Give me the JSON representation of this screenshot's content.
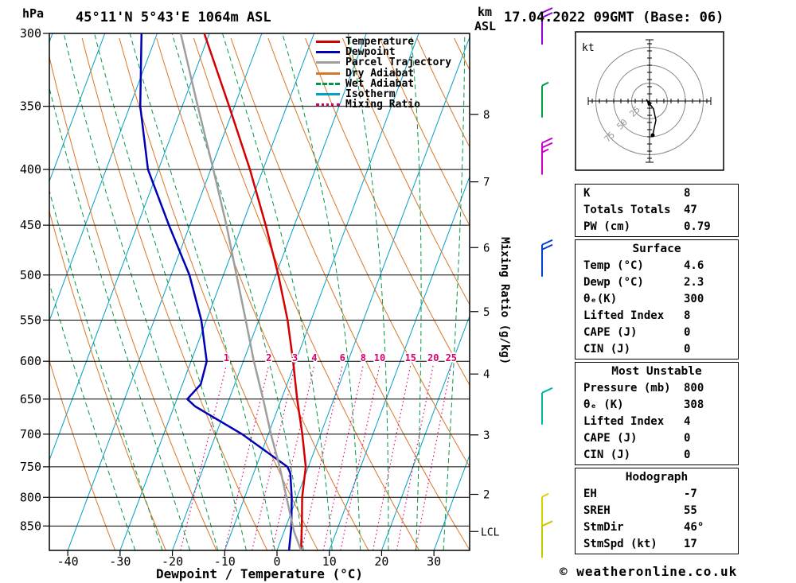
{
  "header": {
    "title": "45°11'N 5°43'E 1064m ASL",
    "datetime": "17.04.2022 09GMT (Base: 06)"
  },
  "footer": {
    "copyright": "© weatheronline.co.uk"
  },
  "legend": [
    {
      "label": "Temperature",
      "color": "#d40000",
      "style": "solid"
    },
    {
      "label": "Dewpoint",
      "color": "#0000b4",
      "style": "solid"
    },
    {
      "label": "Parcel Trajectory",
      "color": "#9e9e9e",
      "style": "solid"
    },
    {
      "label": "Dry Adiabat",
      "color": "#d97728",
      "style": "solid"
    },
    {
      "label": "Wet Adiabat",
      "color": "#009a44",
      "style": "dashed"
    },
    {
      "label": "Isotherm",
      "color": "#00a0c8",
      "style": "solid"
    },
    {
      "label": "Mixing Ratio",
      "color": "#d6006e",
      "style": "dotted"
    }
  ],
  "chart_data": {
    "type": "skewt_log_p",
    "title": "45°11'N 5°43'E 1064m ASL",
    "xlabel": "Dewpoint / Temperature (°C)",
    "pressure_unit": "hPa",
    "altitude_unit_line1": "km",
    "altitude_unit_line2": "ASL",
    "pressure_ticks": [
      300,
      350,
      400,
      450,
      500,
      550,
      600,
      650,
      700,
      750,
      800,
      850
    ],
    "pressure_range": [
      300,
      895
    ],
    "temp_ticks": [
      -40,
      -30,
      -20,
      -10,
      0,
      10,
      20,
      30
    ],
    "km_ticks": [
      8,
      7,
      6,
      5,
      4,
      3,
      2
    ],
    "lcl_label": "LCL",
    "lcl_pressure": 860,
    "mixing_ratio_label": "Mixing Ratio (g/kg)",
    "mixing_ratio_values": [
      1,
      2,
      3,
      4,
      6,
      8,
      10,
      15,
      20,
      25
    ],
    "series": [
      {
        "name": "Temperature",
        "color": "#d40000",
        "width": 2.5,
        "points": [
          [
            895,
            4.6
          ],
          [
            850,
            3.0
          ],
          [
            800,
            1.0
          ],
          [
            750,
            -0.5
          ],
          [
            700,
            -3.5
          ],
          [
            650,
            -7
          ],
          [
            600,
            -10.5
          ],
          [
            550,
            -14.5
          ],
          [
            500,
            -19.5
          ],
          [
            450,
            -25.5
          ],
          [
            400,
            -32.5
          ],
          [
            350,
            -41
          ],
          [
            300,
            -51
          ]
        ]
      },
      {
        "name": "Dewpoint",
        "color": "#0000b4",
        "width": 2.5,
        "points": [
          [
            895,
            2.3
          ],
          [
            850,
            1.0
          ],
          [
            800,
            -1.0
          ],
          [
            760,
            -3.0
          ],
          [
            750,
            -4.0
          ],
          [
            700,
            -15
          ],
          [
            660,
            -26
          ],
          [
            650,
            -28
          ],
          [
            630,
            -26.5
          ],
          [
            600,
            -27
          ],
          [
            550,
            -31
          ],
          [
            500,
            -36.5
          ],
          [
            450,
            -44
          ],
          [
            400,
            -52
          ],
          [
            350,
            -58
          ],
          [
            300,
            -63
          ]
        ]
      },
      {
        "name": "Parcel Trajectory",
        "color": "#9e9e9e",
        "width": 2.5,
        "points": [
          [
            895,
            4.6
          ],
          [
            860,
            1.9
          ],
          [
            800,
            -2.0
          ],
          [
            750,
            -5.5
          ],
          [
            700,
            -9.5
          ],
          [
            650,
            -13.5
          ],
          [
            600,
            -18
          ],
          [
            550,
            -22.5
          ],
          [
            500,
            -27.5
          ],
          [
            450,
            -33
          ],
          [
            400,
            -39.5
          ],
          [
            350,
            -47
          ],
          [
            300,
            -55.5
          ]
        ]
      }
    ]
  },
  "wind_barbs": [
    {
      "p": 300,
      "color": "#9400d3",
      "spd": 20
    },
    {
      "p": 350,
      "color": "#00a040",
      "spd": 5
    },
    {
      "p": 395,
      "color": "#cc00cc",
      "spd": 25
    },
    {
      "p": 490,
      "color": "#0040d0",
      "spd": 20
    },
    {
      "p": 670,
      "color": "#00b8a0",
      "spd": 10
    },
    {
      "p": 835,
      "color": "#ddd000",
      "spd": 5
    },
    {
      "p": 888,
      "color": "#c8c800",
      "spd": 10
    }
  ],
  "hodograph": {
    "unit_label": "kt",
    "rings_kt": [
      25,
      50,
      75
    ],
    "ring_labels": [
      "25",
      "50",
      "75"
    ]
  },
  "stats_panels": [
    {
      "header": "",
      "rows": [
        [
          "K",
          "8"
        ],
        [
          "Totals Totals",
          "47"
        ],
        [
          "PW (cm)",
          "0.79"
        ]
      ]
    },
    {
      "header": "Surface",
      "rows": [
        [
          "Temp (°C)",
          "4.6"
        ],
        [
          "Dewp (°C)",
          "2.3"
        ],
        [
          "θₑ(K)",
          "300"
        ],
        [
          "Lifted Index",
          "8"
        ],
        [
          "CAPE (J)",
          "0"
        ],
        [
          "CIN (J)",
          "0"
        ]
      ]
    },
    {
      "header": "Most Unstable",
      "rows": [
        [
          "Pressure (mb)",
          "800"
        ],
        [
          "θₑ (K)",
          "308"
        ],
        [
          "Lifted Index",
          "4"
        ],
        [
          "CAPE (J)",
          "0"
        ],
        [
          "CIN (J)",
          "0"
        ]
      ]
    },
    {
      "header": "Hodograph",
      "rows": [
        [
          "EH",
          "-7"
        ],
        [
          "SREH",
          "55"
        ],
        [
          "StmDir",
          "46°"
        ],
        [
          "StmSpd (kt)",
          "17"
        ]
      ]
    }
  ]
}
